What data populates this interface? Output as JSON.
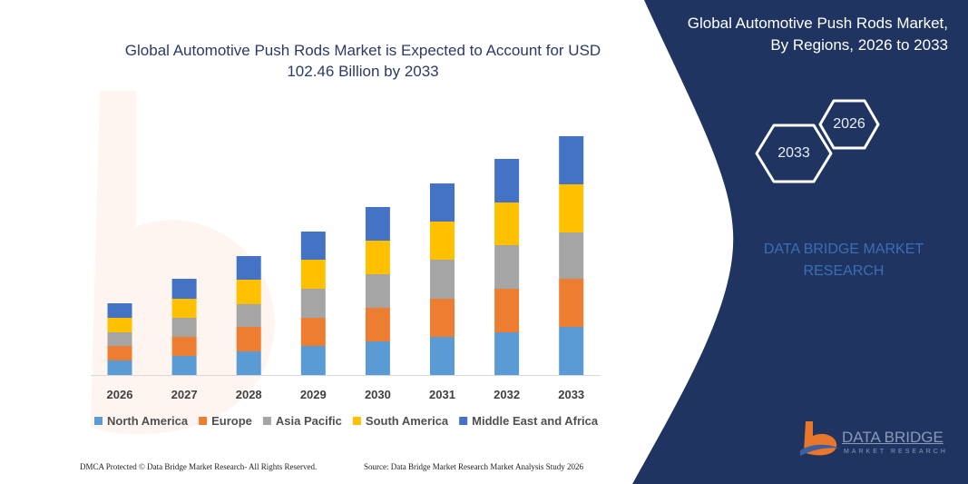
{
  "title": "Global Automotive Push Rods Market is Expected to Account for USD 102.46 Billion by 2033",
  "panel": {
    "title_line1": "Global Automotive Push Rods Market,",
    "title_line2": "By Regions, 2026 to 2033",
    "hex_start": "2026",
    "hex_end": "2033",
    "watermark_line1": "DATA BRIDGE MARKET",
    "watermark_line2": "RESEARCH",
    "logo_main": "DATA BRIDGE",
    "logo_sub": "MARKET RESEARCH",
    "bg_color": "#1f3461"
  },
  "footer": {
    "left": "DMCA Protected © Data Bridge Market Research-  All Rights Reserved.",
    "right": "Source: Data Bridge Market Research  Market Analysis Study 2026"
  },
  "chart_data": {
    "type": "bar",
    "stacked": true,
    "title": "Global Automotive Push Rods Market is Expected to Account for USD 102.46 Billion by 2033",
    "xlabel": "",
    "ylabel": "",
    "grid": false,
    "legend_placement": "bottom",
    "categories": [
      "2026",
      "2027",
      "2028",
      "2029",
      "2030",
      "2031",
      "2032",
      "2033"
    ],
    "series": [
      {
        "name": "North America",
        "color": "#5b9bd5",
        "values": [
          16,
          21,
          26,
          32,
          37,
          42,
          47,
          53
        ]
      },
      {
        "name": "Europe",
        "color": "#ed7d31",
        "values": [
          16,
          21,
          27,
          31,
          37,
          42,
          48,
          53
        ]
      },
      {
        "name": "Asia Pacific",
        "color": "#a5a5a5",
        "values": [
          15,
          21,
          25,
          32,
          37,
          43,
          48,
          51
        ]
      },
      {
        "name": "South America",
        "color": "#ffc000",
        "values": [
          16,
          21,
          27,
          32,
          37,
          42,
          47,
          53
        ]
      },
      {
        "name": "Middle East and Africa",
        "color": "#4472c4",
        "values": [
          16,
          22,
          26,
          31,
          37,
          42,
          48,
          53
        ]
      }
    ]
  }
}
